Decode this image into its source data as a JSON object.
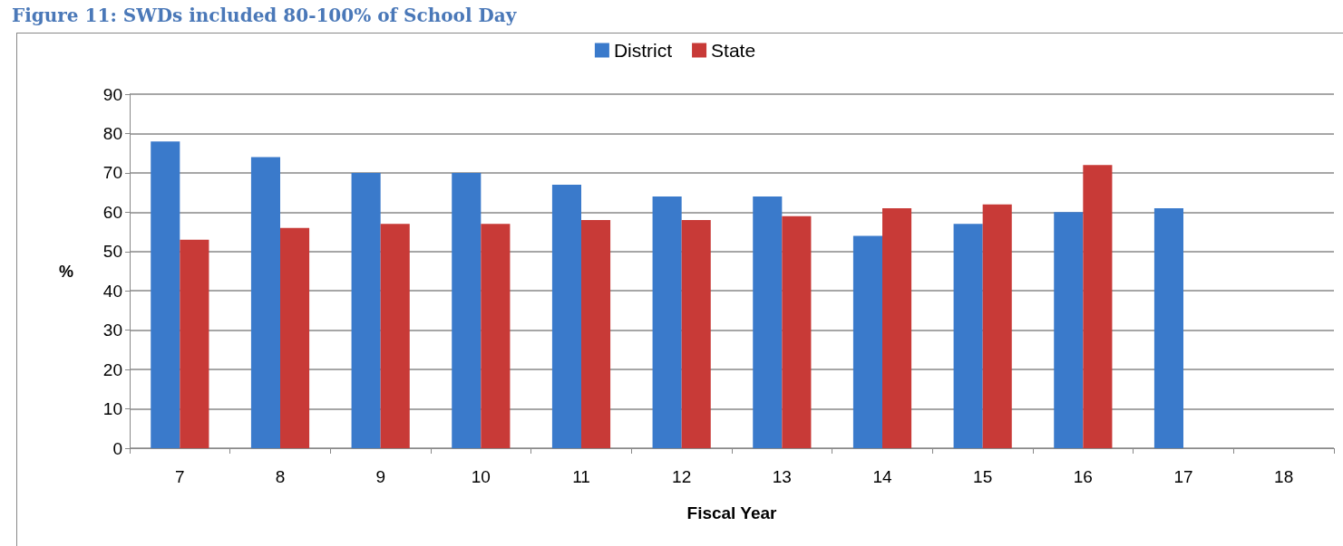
{
  "chart_data": {
    "type": "bar",
    "title": "Figure 11: SWDs included 80-100% of School Day",
    "xlabel": "Fiscal Year",
    "ylabel": "%",
    "categories": [
      "7",
      "8",
      "9",
      "10",
      "11",
      "12",
      "13",
      "14",
      "15",
      "16",
      "17",
      "18"
    ],
    "series": [
      {
        "name": "District",
        "color": "#3a7acb",
        "values": [
          78,
          74,
          70,
          70,
          67,
          64,
          64,
          54,
          57,
          60,
          61,
          null
        ]
      },
      {
        "name": "State",
        "color": "#c83a37",
        "values": [
          53,
          56,
          57,
          57,
          58,
          58,
          59,
          61,
          62,
          72,
          null,
          null
        ]
      }
    ],
    "ylim": [
      0,
      90
    ],
    "yticks": [
      0,
      10,
      20,
      30,
      40,
      50,
      60,
      70,
      80,
      90
    ],
    "grid": "y",
    "legend": "top"
  }
}
